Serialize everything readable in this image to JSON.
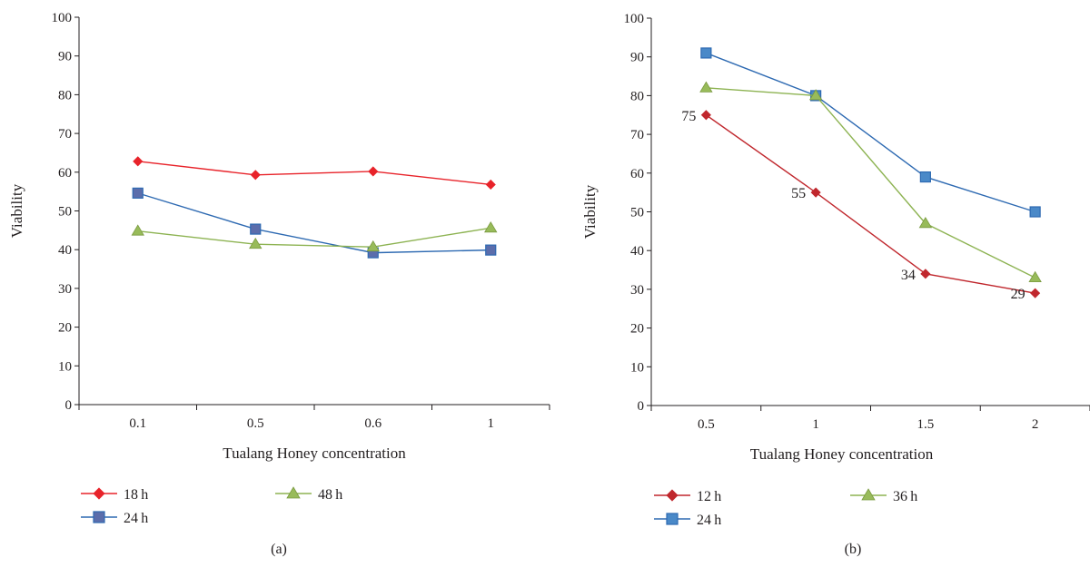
{
  "colors": {
    "axis": "#231f20",
    "red": "#e8232a",
    "dark_red": "#c0272d",
    "blue": "#2e6ab2",
    "green": "#8db352",
    "marker_blue_a": "#5b6dab",
    "marker_blue_b": "#4a89c8",
    "marker_green": "#98bb5a"
  },
  "chart_data": [
    {
      "type": "line",
      "panel_label": "(a)",
      "xlabel": "Tualang Honey concentration",
      "ylabel": "Viability",
      "categories": [
        "0.1",
        "0.5",
        "0.6",
        "1"
      ],
      "ylim": [
        0,
        100
      ],
      "yticks": [
        0,
        10,
        20,
        30,
        40,
        50,
        60,
        70,
        80,
        90,
        100
      ],
      "grid": false,
      "legend_position": "bottom",
      "series": [
        {
          "name": "18 h",
          "values": [
            62.8,
            59.3,
            60.2,
            56.8
          ],
          "marker": "diamond",
          "color_key": "red"
        },
        {
          "name": "24 h",
          "values": [
            54.6,
            45.3,
            39.2,
            39.9
          ],
          "marker": "square",
          "color_key": "blue"
        },
        {
          "name": "48 h",
          "values": [
            44.8,
            41.4,
            40.7,
            45.6
          ],
          "marker": "triangle",
          "color_key": "green"
        }
      ],
      "legend_order": [
        "18 h",
        "48 h",
        "24 h"
      ]
    },
    {
      "type": "line",
      "panel_label": "(b)",
      "xlabel": "Tualang Honey concentration",
      "ylabel": "Viability",
      "categories": [
        "0.5",
        "1",
        "1.5",
        "2"
      ],
      "ylim": [
        0,
        100
      ],
      "yticks": [
        0,
        10,
        20,
        30,
        40,
        50,
        60,
        70,
        80,
        90,
        100
      ],
      "grid": false,
      "legend_position": "bottom",
      "series": [
        {
          "name": "12 h",
          "values": [
            75,
            55,
            34,
            29
          ],
          "marker": "diamond",
          "color_key": "dark_red",
          "data_labels": [
            "75",
            "55",
            "34",
            "29"
          ]
        },
        {
          "name": "24 h",
          "values": [
            91,
            80,
            59,
            50
          ],
          "marker": "square",
          "color_key": "blue"
        },
        {
          "name": "36 h",
          "values": [
            82,
            80,
            47,
            33
          ],
          "marker": "triangle",
          "color_key": "green"
        }
      ],
      "legend_order": [
        "12 h",
        "36 h",
        "24 h"
      ]
    }
  ]
}
